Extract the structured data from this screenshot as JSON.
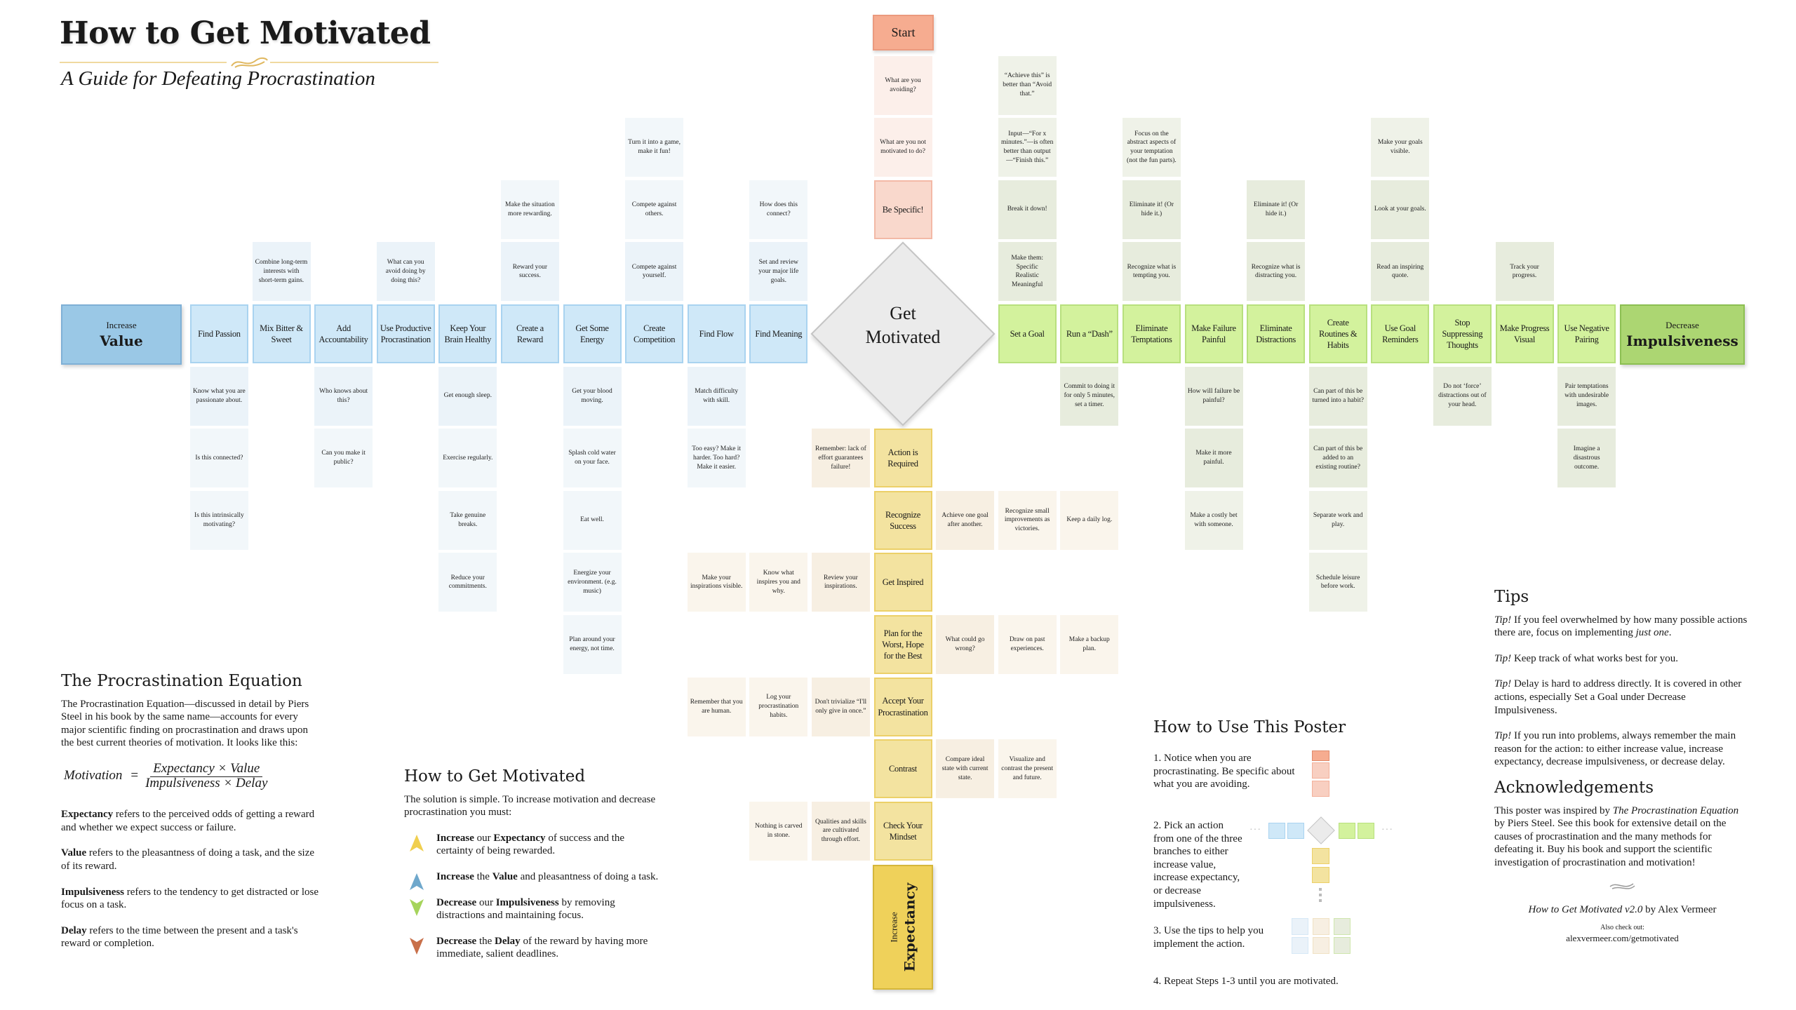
{
  "title": "How to Get Motivated",
  "subtitle": "A Guide for Defeating Procrastination",
  "colors": {
    "value": "#9ac8e6",
    "impulsiveness": "#acd672",
    "expectancy": "#efd15a",
    "start": "#f6ac90"
  },
  "start": {
    "label": "Start",
    "tips": [
      "What are you avoiding?",
      "What are you not motivated to do?"
    ],
    "be_specific": "Be Specific!"
  },
  "center": {
    "line1": "Get",
    "line2": "Motivated"
  },
  "value_branch": {
    "prefix": "Increase",
    "name": "Value",
    "actions": [
      {
        "label": "Find Meaning",
        "above": [
          "Set and review your major life goals.",
          "How does this connect?"
        ],
        "below": []
      },
      {
        "label": "Find Flow",
        "above": [],
        "below": [
          "Match difficulty with skill.",
          "Too easy? Make it harder. Too hard? Make it easier."
        ]
      },
      {
        "label": "Create Competition",
        "above": [
          "Compete against yourself.",
          "Compete against others.",
          "Turn it into a game, make it fun!"
        ],
        "below": []
      },
      {
        "label": "Get Some Energy",
        "above": [],
        "below": [
          "Get your blood moving.",
          "Splash cold water on your face.",
          "Eat well.",
          "Energize your environment. (e.g. music)",
          "Plan around your energy, not time."
        ]
      },
      {
        "label": "Create a Reward",
        "above": [
          "Reward your success.",
          "Make the situation more rewarding."
        ],
        "below": []
      },
      {
        "label": "Keep Your Brain Healthy",
        "above": [],
        "below": [
          "Get enough sleep.",
          "Exercise regularly.",
          "Take genuine breaks.",
          "Reduce your commitments."
        ]
      },
      {
        "label": "Use Productive Procrastination",
        "above": [
          "What can you avoid doing by doing this?"
        ],
        "below": []
      },
      {
        "label": "Add Accountability",
        "above": [],
        "below": [
          "Who knows about this?",
          "Can you make it public?"
        ]
      },
      {
        "label": "Mix Bitter & Sweet",
        "above": [
          "Combine long-term interests with short-term gains."
        ],
        "below": []
      },
      {
        "label": "Find Passion",
        "above": [],
        "below": [
          "Know what you are passionate about.",
          "Is this connected?",
          "Is this intrinsically motivating?"
        ]
      }
    ]
  },
  "impulsiveness_branch": {
    "prefix": "Decrease",
    "name": "Impulsiveness",
    "actions": [
      {
        "label": "Set a Goal",
        "above": [
          "Make them:\nSpecific\nRealistic\nMeaningful",
          "Break it down!",
          "Input—“For x minutes.”—is often better than output—“Finish this.”",
          "“Achieve this” is better than “Avoid that.”"
        ],
        "below": []
      },
      {
        "label": "Run a “Dash”",
        "above": [],
        "below": [
          "Commit to doing it for only 5 minutes, set a timer."
        ]
      },
      {
        "label": "Eliminate Temptations",
        "above": [
          "Recognize what is tempting you.",
          "Eliminate it! (Or hide it.)",
          "Focus on the abstract aspects of your temptation (not the fun parts)."
        ],
        "below": []
      },
      {
        "label": "Make Failure Painful",
        "above": [],
        "below": [
          "How will failure be painful?",
          "Make it more painful.",
          "Make a costly bet with someone."
        ]
      },
      {
        "label": "Eliminate Distractions",
        "above": [
          "Recognize what is distracting you.",
          "Eliminate it! (Or hide it.)"
        ],
        "below": []
      },
      {
        "label": "Create Routines & Habits",
        "above": [],
        "below": [
          "Can part of this be turned into a habit?",
          "Can part of this be added to an existing routine?",
          "Separate work and play.",
          "Schedule leisure before work."
        ]
      },
      {
        "label": "Use Goal Reminders",
        "above": [
          "Read an inspiring quote.",
          "Look at your goals.",
          "Make your goals visible."
        ],
        "below": []
      },
      {
        "label": "Stop Suppressing Thoughts",
        "above": [],
        "below": [
          "Do not ‘force’ distractions out of your head."
        ]
      },
      {
        "label": "Make Progress Visual",
        "above": [
          "Track your progress."
        ],
        "below": []
      },
      {
        "label": "Use Negative Pairing",
        "above": [],
        "below": [
          "Pair temptations with undesirable images.",
          "Imagine a disastrous outcome."
        ]
      }
    ]
  },
  "expectancy_branch": {
    "prefix": "Increase",
    "name": "Expectancy",
    "actions": [
      {
        "label": "Action is Required",
        "left": [
          "Remember: lack of effort guarantees failure!"
        ],
        "right": []
      },
      {
        "label": "Recognize Success",
        "left": [],
        "right": [
          "Achieve one goal after another.",
          "Recognize small improvements as victories.",
          "Keep a daily log."
        ]
      },
      {
        "label": "Get Inspired",
        "left": [
          "Review your inspirations.",
          "Know what inspires you and why.",
          "Make your inspirations visible."
        ],
        "right": []
      },
      {
        "label": "Plan for the Worst, Hope for the Best",
        "left": [],
        "right": [
          "What could go wrong?",
          "Draw on past experiences.",
          "Make a backup plan."
        ]
      },
      {
        "label": "Accept Your Procrastination",
        "left": [
          "Don't trivialize “I'll only give in once.”",
          "Log your procrastination habits.",
          "Remember that you are human."
        ],
        "right": []
      },
      {
        "label": "Contrast",
        "left": [],
        "right": [
          "Compare ideal state with current state.",
          "Visualize and contrast the present and future."
        ]
      },
      {
        "label": "Check Your Mindset",
        "left": [
          "Qualities and skills are cultivated through effort.",
          "Nothing is carved in stone."
        ],
        "right": []
      }
    ]
  },
  "equation_section": {
    "heading": "The Procrastination Equation",
    "intro": "The Procrastination Equation—discussed in detail by Piers Steel in his book by the same name—accounts for every major scientific finding on procrastination and draws upon the best current theories of motivation. It looks like this:",
    "lhs": "Motivation",
    "equals": "=",
    "numerator": "Expectancy × Value",
    "denominator": "Impulsiveness × Delay",
    "definitions": [
      {
        "term": "Expectancy",
        "text": " refers to the perceived odds of getting a reward and whether we expect success or failure."
      },
      {
        "term": "Value",
        "text": " refers to the pleasantness of doing a task, and the size of its reward."
      },
      {
        "term": "Impulsiveness",
        "text": " refers to the tendency to get distracted or lose focus on a task."
      },
      {
        "term": "Delay",
        "text": " refers to the time between the present and a task's reward or completion."
      }
    ]
  },
  "how_section": {
    "heading": "How to Get Motivated",
    "intro": "The solution is simple. To increase motivation and decrease procrastination you must:",
    "bullets": [
      {
        "verb": "Increase",
        "mid": " our ",
        "term": "Expectancy",
        "rest": " of success and the certainty of being rewarded.",
        "arrow": "up",
        "color": "#f0cf4f"
      },
      {
        "verb": "Increase",
        "mid": " the ",
        "term": "Value",
        "rest": " and pleasantness of doing a task.",
        "arrow": "up",
        "color": "#6fa8cc"
      },
      {
        "verb": "Decrease",
        "mid": " our ",
        "term": "Impulsiveness",
        "rest": " by removing distractions and maintaining focus.",
        "arrow": "down",
        "color": "#a6d45c"
      },
      {
        "verb": "Decrease",
        "mid": " the ",
        "term": "Delay",
        "rest": " of the reward by having more immediate, salient deadlines.",
        "arrow": "down",
        "color": "#c8704a"
      }
    ]
  },
  "use_section": {
    "heading": "How to Use This Poster",
    "steps": [
      "1. Notice when you are procrastinating. Be specific about what you are avoiding.",
      "2. Pick an action from one of the three branches to either increase value, increase expectancy, or decrease impulsiveness.",
      "3. Use the tips to help you implement the action.",
      "4. Repeat Steps 1-3 until you are motivated."
    ],
    "dots": "···"
  },
  "tips_section": {
    "heading": "Tips",
    "tips": [
      {
        "prefix": "Tip!",
        "text": " If you feel overwhelmed by how many possible actions there are, focus on implementing ",
        "emph": "just one",
        "end": "."
      },
      {
        "prefix": "Tip!",
        "text": " Keep track of what works best for you.",
        "emph": "",
        "end": ""
      },
      {
        "prefix": "Tip!",
        "text": " Delay is hard to address directly. It is covered in other actions, especially Set a Goal under Decrease Impulsiveness.",
        "emph": "",
        "end": ""
      },
      {
        "prefix": "Tip!",
        "text": " If you run into problems, always remember the main reason for the action: to either increase value, increase expectancy, decrease impulsiveness, or decrease delay.",
        "emph": "",
        "end": ""
      }
    ]
  },
  "ack_section": {
    "heading": "Acknowledgements",
    "pre": "This poster was inspired by ",
    "book": "The Procrastination Equation",
    "post": " by Piers Steel. See this book for extensive detail on the causes of procrastination and the many methods for defeating it. Buy his book and support the scientific investigation of procrastination and motivation!",
    "byline_title": "How to Get Motivated v2.0",
    "byline_rest": " by Alex Vermeer",
    "also": "Also check out:",
    "url": "alexvermeer.com/getmotivated"
  }
}
